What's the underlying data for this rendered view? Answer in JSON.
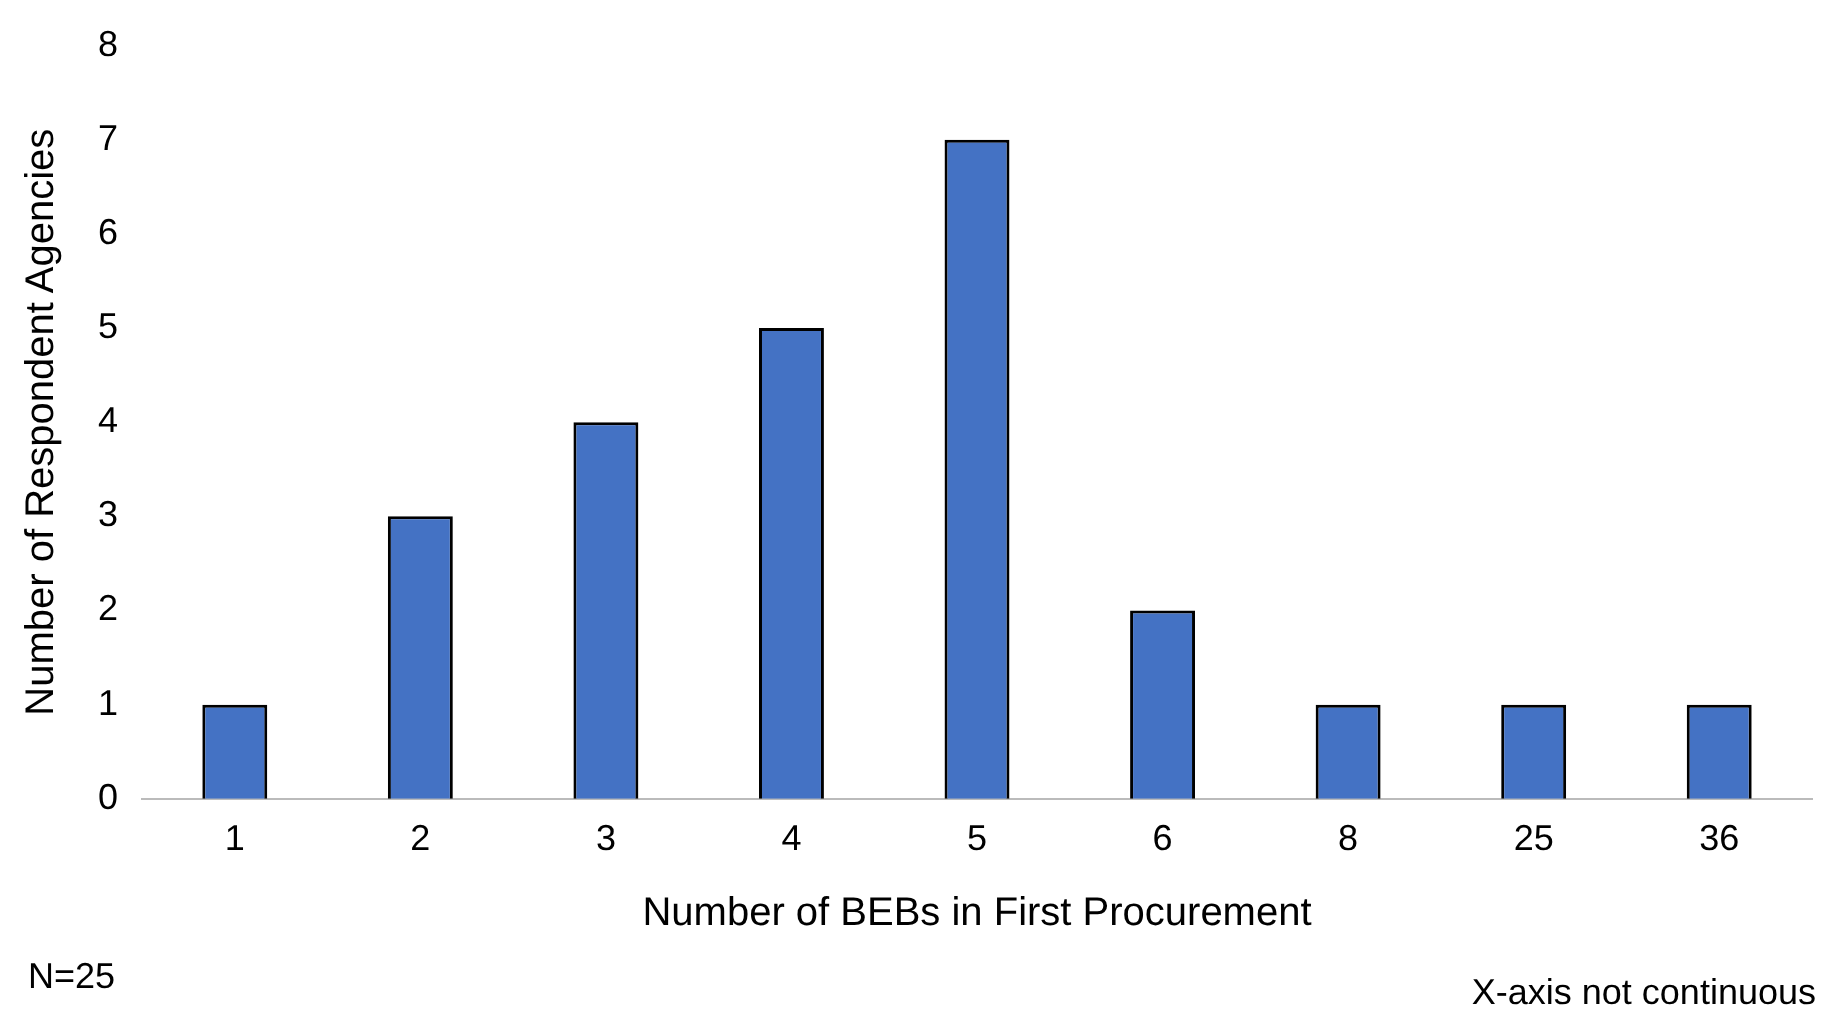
{
  "chart_data": {
    "type": "bar",
    "xlabel": "Number of BEBs in First Procurement",
    "ylabel": "Number of Respondent Agencies",
    "categories": [
      "1",
      "2",
      "3",
      "4",
      "5",
      "6",
      "8",
      "25",
      "36"
    ],
    "values": [
      1,
      3,
      4,
      5,
      7,
      2,
      1,
      1,
      1
    ],
    "color": "#4472c4",
    "ylim": [
      0,
      8
    ],
    "yticks": [
      0,
      1,
      2,
      3,
      4,
      5,
      6,
      7,
      8
    ],
    "grid": false,
    "legend": false,
    "annotations": [
      "N=25",
      "X-axis not continuous"
    ]
  }
}
